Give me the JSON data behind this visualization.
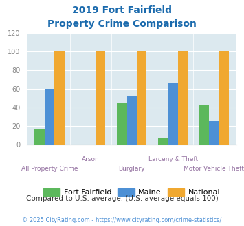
{
  "title_line1": "2019 Fort Fairfield",
  "title_line2": "Property Crime Comparison",
  "categories": [
    "All Property Crime",
    "Arson",
    "Burglary",
    "Larceny & Theft",
    "Motor Vehicle Theft"
  ],
  "fort_fairfield": [
    16,
    0,
    45,
    7,
    42
  ],
  "maine": [
    60,
    0,
    52,
    66,
    25
  ],
  "national": [
    100,
    100,
    100,
    100,
    100
  ],
  "color_ff": "#5cb85c",
  "color_maine": "#4d90d5",
  "color_national": "#f0a830",
  "ylim": [
    0,
    120
  ],
  "yticks": [
    0,
    20,
    40,
    60,
    80,
    100,
    120
  ],
  "bg_color": "#dce9ef",
  "note": "Compared to U.S. average. (U.S. average equals 100)",
  "footer": "© 2025 CityRating.com - https://www.cityrating.com/crime-statistics/",
  "title_color": "#1a6aad",
  "xlabel_color_odd": "#9370a0",
  "xlabel_color_even": "#9370a0",
  "note_color": "#333333",
  "footer_color": "#4d90d5",
  "tick_color": "#888888",
  "bar_width": 0.24,
  "figsize": [
    3.55,
    3.3
  ],
  "dpi": 100
}
